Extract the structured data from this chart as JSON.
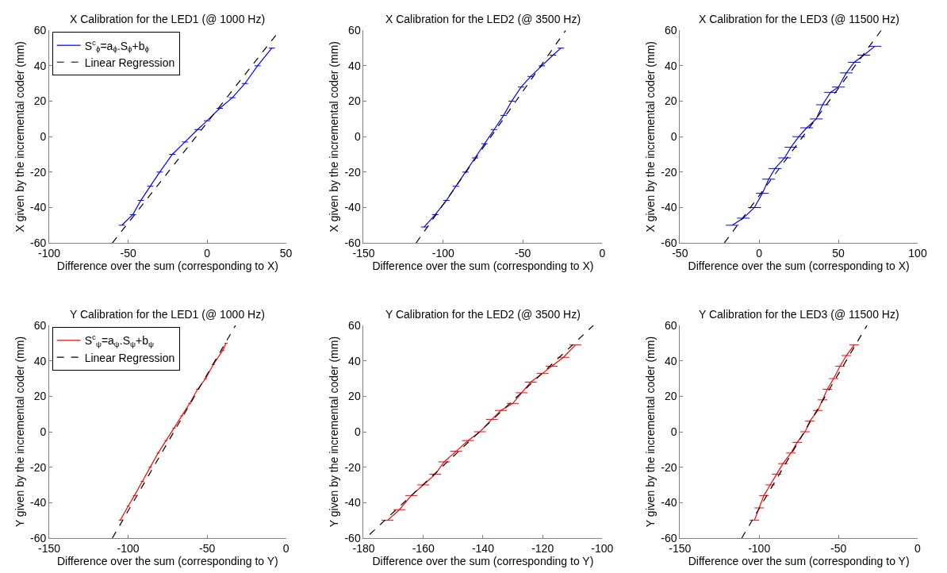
{
  "chart_data": [
    {
      "type": "line",
      "title": "X Calibration for the LED1 (@ 1000 Hz)",
      "xlabel": "Difference over the sum (corresponding to X)",
      "ylabel": "X given by the incremental coder (mm)",
      "xlim": [
        -100,
        50
      ],
      "xticks": [
        -100,
        -50,
        0,
        50
      ],
      "ylim": [
        -60,
        60
      ],
      "yticks": [
        -60,
        -40,
        -20,
        0,
        20,
        40,
        60
      ],
      "legend": "top left",
      "series": [
        {
          "name": "S$^{c}$$_{ϕ}$=a$_{ϕ}$.S$_{ϕ}$+b$_{ϕ}$",
          "color": "#0000ff",
          "line_style": "solid",
          "x": [
            -54,
            -47,
            -42,
            -36,
            -30,
            -22,
            -14,
            -6,
            0,
            8,
            16,
            24,
            32,
            41
          ],
          "values": [
            -50,
            -44,
            -36,
            -28,
            -20,
            -10,
            -3,
            4,
            9,
            16,
            22,
            30,
            40,
            50
          ],
          "xerrors": [
            2,
            2,
            2,
            2,
            2,
            2,
            2,
            2,
            2,
            2,
            2,
            2,
            2,
            2
          ]
        },
        {
          "name": "Linear Regression",
          "color": "#000000",
          "line_style": "dashed",
          "x": [
            -60,
            46
          ],
          "values": [
            -60,
            60
          ]
        }
      ]
    },
    {
      "type": "line",
      "title": "X Calibration for the LED2 (@ 3500 Hz)",
      "xlabel": "Difference over the sum (corresponding to X)",
      "ylabel": "X given by the incremental coder (mm)",
      "xlim": [
        -150,
        0
      ],
      "xticks": [
        -150,
        -100,
        -50,
        0
      ],
      "ylim": [
        -60,
        60
      ],
      "yticks": [
        -60,
        -40,
        -20,
        0,
        20,
        40,
        60
      ],
      "series": [
        {
          "color": "#0000ff",
          "line_style": "solid",
          "x": [
            -112,
            -105,
            -98,
            -92,
            -86,
            -80,
            -74,
            -68,
            -62,
            -57,
            -51,
            -45,
            -38,
            -31,
            -26
          ],
          "values": [
            -51,
            -44,
            -36,
            -28,
            -20,
            -12,
            -4,
            4,
            12,
            20,
            28,
            34,
            40,
            46,
            50
          ],
          "xerrors": [
            2,
            2,
            2,
            2,
            2,
            2,
            2,
            2,
            2,
            2,
            2,
            2,
            2,
            2,
            2
          ]
        },
        {
          "color": "#000000",
          "line_style": "dashed",
          "x": [
            -117,
            -23
          ],
          "values": [
            -60,
            60
          ]
        }
      ]
    },
    {
      "type": "line",
      "title": "X Calibration for the LED3 (@ 11500 Hz)",
      "xlabel": "Difference over the sum (corresponding to X)",
      "ylabel": "X given by the incremental coder (mm)",
      "xlim": [
        -50,
        100
      ],
      "xticks": [
        -50,
        0,
        50,
        100
      ],
      "ylim": [
        -60,
        60
      ],
      "yticks": [
        -60,
        -40,
        -20,
        0,
        20,
        40,
        60
      ],
      "series": [
        {
          "color": "#0000ff",
          "line_style": "solid",
          "x": [
            -17,
            -10,
            -3,
            2,
            6,
            10,
            16,
            20,
            25,
            30,
            36,
            40,
            45,
            50,
            55,
            60,
            66,
            73
          ],
          "values": [
            -50,
            -46,
            -40,
            -32,
            -24,
            -18,
            -12,
            -6,
            0,
            5,
            10,
            18,
            25,
            28,
            36,
            42,
            46,
            51
          ],
          "xerrors": [
            4,
            4,
            4,
            4,
            4,
            4,
            4,
            4,
            4,
            4,
            4,
            4,
            4,
            4,
            4,
            4,
            4,
            4
          ]
        },
        {
          "color": "#000000",
          "line_style": "dashed",
          "x": [
            -22,
            77
          ],
          "values": [
            -60,
            60
          ]
        }
      ]
    },
    {
      "type": "line",
      "title": "Y Calibration for the LED1 (@ 1000 Hz)",
      "xlabel": "Difference over the sum (corresponding to Y)",
      "ylabel": "Y given by the incremental coder (mm)",
      "xlim": [
        -150,
        0
      ],
      "xticks": [
        -150,
        -100,
        -50,
        0
      ],
      "ylim": [
        -60,
        60
      ],
      "yticks": [
        -60,
        -40,
        -20,
        0,
        20,
        40,
        60
      ],
      "legend": "top left",
      "series": [
        {
          "name": "S$^{c}$$_{ψ}$=a$_{ψ}$.S$_{ψ}$+b$_{ψ}$",
          "color": "#ff0000",
          "line_style": "solid",
          "x": [
            -105,
            -100,
            -96,
            -91,
            -86,
            -81,
            -76,
            -71,
            -66,
            -61,
            -56,
            -51,
            -46,
            -40,
            -38
          ],
          "values": [
            -50,
            -42,
            -36,
            -28,
            -20,
            -12,
            -5,
            2,
            9,
            16,
            24,
            30,
            38,
            46,
            50
          ],
          "xerrors": [
            1,
            1,
            1,
            1,
            1,
            1,
            1,
            1,
            1,
            1,
            1,
            1,
            1,
            1,
            1
          ]
        },
        {
          "name": "Linear Regression",
          "color": "#000000",
          "line_style": "dashed",
          "x": [
            -110,
            -32
          ],
          "values": [
            -60,
            60
          ]
        }
      ]
    },
    {
      "type": "line",
      "title": "Y Calibration for the LED2 (@ 3500 Hz)",
      "xlabel": "Difference over the sum (corresponding to Y)",
      "ylabel": "Y given by the incremental coder (mm)",
      "xlim": [
        -180,
        -100
      ],
      "xticks": [
        -180,
        -160,
        -140,
        -120,
        -100
      ],
      "ylim": [
        -60,
        60
      ],
      "yticks": [
        -60,
        -40,
        -20,
        0,
        20,
        40,
        60
      ],
      "series": [
        {
          "color": "#ff0000",
          "line_style": "solid",
          "x": [
            -172,
            -168,
            -164,
            -160,
            -156,
            -153,
            -149,
            -145,
            -141,
            -137,
            -134,
            -130,
            -127,
            -124,
            -120,
            -117,
            -113,
            -109
          ],
          "values": [
            -50,
            -44,
            -36,
            -30,
            -24,
            -17,
            -11,
            -5,
            0,
            7,
            12,
            16,
            22,
            28,
            33,
            37,
            42,
            49
          ],
          "xerrors": [
            2,
            2,
            2,
            2,
            2,
            2,
            2,
            2,
            2,
            2,
            2,
            2,
            2,
            2,
            2,
            2,
            2,
            2
          ]
        },
        {
          "color": "#000000",
          "line_style": "dashed",
          "x": [
            -178,
            -103
          ],
          "values": [
            -58,
            60
          ]
        }
      ]
    },
    {
      "type": "line",
      "title": "Y Calibration for the LED3 (@ 11500 Hz)",
      "xlabel": "Difference over the sum (corresponding to Y)",
      "ylabel": "Y given by the incremental coder (mm)",
      "xlim": [
        -150,
        0
      ],
      "xticks": [
        -150,
        -100,
        -50,
        0
      ],
      "ylim": [
        -60,
        60
      ],
      "yticks": [
        -60,
        -40,
        -20,
        0,
        20,
        40,
        60
      ],
      "series": [
        {
          "color": "#ff0000",
          "line_style": "solid",
          "x": [
            -103,
            -100,
            -97,
            -93,
            -89,
            -85,
            -80,
            -76,
            -71,
            -68,
            -63,
            -60,
            -57,
            -53,
            -49,
            -45,
            -40
          ],
          "values": [
            -50,
            -43,
            -36,
            -30,
            -24,
            -18,
            -12,
            -6,
            0,
            6,
            12,
            18,
            24,
            30,
            37,
            43,
            49
          ],
          "xerrors": [
            3,
            3,
            3,
            3,
            3,
            3,
            3,
            3,
            3,
            3,
            3,
            3,
            3,
            3,
            3,
            3,
            3
          ]
        },
        {
          "color": "#000000",
          "line_style": "dashed",
          "x": [
            -111,
            -32
          ],
          "values": [
            -60,
            60
          ]
        }
      ]
    }
  ]
}
